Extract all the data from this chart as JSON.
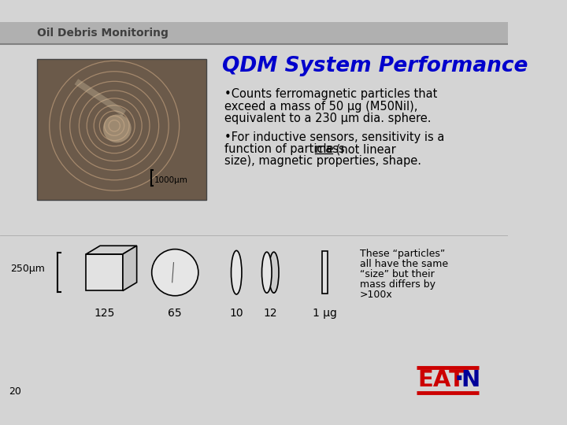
{
  "bg_color": "#d4d4d4",
  "header_text": "Oil Debris Monitoring",
  "header_text_color": "#404040",
  "title": "QDM System Performance",
  "title_color": "#0000cc",
  "bullet1_line1": "•Counts ferromagnetic particles that",
  "bullet1_line2": "exceed a mass of 50 μg (M50Nil),",
  "bullet1_line3": "equivalent to a 230 μm dia. sphere.",
  "bullet2_line1": "•For inductive sensors, sensitivity is a",
  "bullet2_line2_pre": "function of particle ",
  "bullet2_line2_under": "mass",
  "bullet2_line2_post": " (not linear",
  "bullet2_line3": "size), magnetic properties, shape.",
  "scale_label": "1000μm",
  "size_label": "250μm",
  "labels": [
    "125",
    "65",
    "10",
    "12",
    "1 μg",
    ">100x"
  ],
  "note_lines": [
    "These “particles”",
    "all have the same",
    "“size” but their",
    "mass differs by",
    ">100x"
  ],
  "page_num": "20",
  "text_color": "#000000",
  "eaton_red": "#cc0000",
  "eaton_blue": "#000099"
}
